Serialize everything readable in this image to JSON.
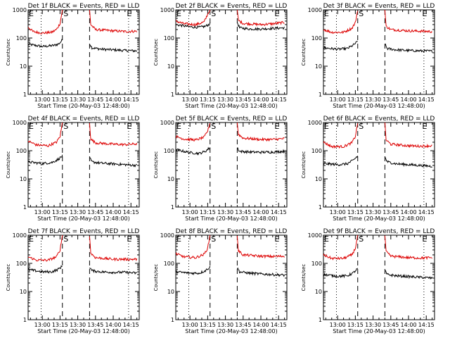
{
  "figure": {
    "time_ticks": [
      "13:00",
      "13:15",
      "13:30",
      "13:45",
      "14:00",
      "14:15"
    ],
    "y_ticks": [
      "1",
      "10",
      "100",
      "1000"
    ],
    "ylabel": "Counts/sec",
    "xlabel": "Start Time (20-May-03 12:48:00)",
    "markers": {
      "start_left": "E",
      "saa": "S",
      "end_right": "E"
    },
    "colors": {
      "events": "#000000",
      "lld": "#dd0000",
      "dotted": "#000000"
    }
  },
  "chart_data": [
    {
      "type": "line",
      "title": "Det 1f BLACK = Events, RED = LLD",
      "xlabel": "Start Time (20-May-03 12:48:00)",
      "ylabel": "Counts/sec",
      "yscale": "log",
      "ylim": [
        1,
        1000
      ],
      "xlim": [
        "12:48",
        "14:22"
      ],
      "vlines_dotted": [
        "12:59",
        "14:13"
      ],
      "vlines_dashed": [
        "13:17",
        "13:40"
      ],
      "series": [
        {
          "name": "Events",
          "color": "#000000",
          "segments": [
            {
              "x": [
                "12:48",
                "13:00",
                "13:05",
                "13:10",
                "13:14",
                "13:17"
              ],
              "y": [
                60,
                50,
                52,
                55,
                62,
                85
              ]
            },
            {
              "x": [
                "13:40",
                "13:42",
                "13:50",
                "14:00",
                "14:10",
                "14:20"
              ],
              "y": [
                65,
                45,
                40,
                38,
                36,
                35
              ]
            }
          ]
        },
        {
          "name": "LLD",
          "color": "#dd0000",
          "segments": [
            {
              "x": [
                "12:48",
                "12:52",
                "13:00",
                "13:08",
                "13:12",
                "13:15",
                "13:17"
              ],
              "y": [
                250,
                170,
                150,
                160,
                200,
                330,
                1000
              ]
            },
            {
              "x": [
                "13:40",
                "13:41",
                "13:45",
                "14:00",
                "14:10",
                "14:20"
              ],
              "y": [
                1000,
                300,
                200,
                180,
                170,
                175
              ]
            }
          ]
        }
      ]
    },
    {
      "type": "line",
      "title": "Det 2f BLACK = Events, RED = LLD",
      "xlabel": "Start Time (20-May-03 12:48:00)",
      "ylabel": "Counts/sec",
      "yscale": "log",
      "ylim": [
        1,
        1000
      ],
      "xlim": [
        "12:48",
        "14:22"
      ],
      "vlines_dotted": [
        "12:59",
        "14:13"
      ],
      "vlines_dashed": [
        "13:17",
        "13:40"
      ],
      "series": [
        {
          "name": "Events",
          "color": "#000000",
          "segments": [
            {
              "x": [
                "12:48",
                "13:00",
                "13:08",
                "13:13",
                "13:17"
              ],
              "y": [
                300,
                250,
                240,
                260,
                320
              ]
            },
            {
              "x": [
                "13:40",
                "13:42",
                "13:50",
                "14:00",
                "14:10",
                "14:20"
              ],
              "y": [
                360,
                230,
                210,
                210,
                220,
                230
              ]
            }
          ]
        },
        {
          "name": "LLD",
          "color": "#dd0000",
          "segments": [
            {
              "x": [
                "12:48",
                "12:55",
                "13:05",
                "13:12",
                "13:15",
                "13:17"
              ],
              "y": [
                400,
                320,
                300,
                370,
                700,
                1000
              ]
            },
            {
              "x": [
                "13:40",
                "13:41",
                "13:45",
                "14:00",
                "14:10",
                "14:20"
              ],
              "y": [
                1000,
                420,
                330,
                300,
                320,
                360
              ]
            }
          ]
        }
      ]
    },
    {
      "type": "line",
      "title": "Det 3f BLACK = Events, RED = LLD",
      "xlabel": "Start Time (20-May-03 12:48:00)",
      "ylabel": "Counts/sec",
      "yscale": "log",
      "ylim": [
        1,
        1000
      ],
      "xlim": [
        "12:48",
        "14:22"
      ],
      "vlines_dotted": [
        "12:59",
        "14:13"
      ],
      "vlines_dashed": [
        "13:17",
        "13:40"
      ],
      "series": [
        {
          "name": "Events",
          "color": "#000000",
          "segments": [
            {
              "x": [
                "12:48",
                "13:00",
                "13:08",
                "13:13",
                "13:17"
              ],
              "y": [
                45,
                40,
                42,
                55,
                75
              ]
            },
            {
              "x": [
                "13:40",
                "13:42",
                "13:50",
                "14:00",
                "14:10",
                "14:20"
              ],
              "y": [
                60,
                42,
                38,
                36,
                35,
                34
              ]
            }
          ]
        },
        {
          "name": "LLD",
          "color": "#dd0000",
          "segments": [
            {
              "x": [
                "12:48",
                "12:55",
                "13:05",
                "13:12",
                "13:15",
                "13:17"
              ],
              "y": [
                200,
                160,
                160,
                220,
                350,
                1000
              ]
            },
            {
              "x": [
                "13:40",
                "13:41",
                "13:45",
                "14:00",
                "14:10",
                "14:20"
              ],
              "y": [
                1000,
                260,
                200,
                180,
                175,
                170
              ]
            }
          ]
        }
      ]
    },
    {
      "type": "line",
      "title": "Det 4f BLACK = Events, RED = LLD",
      "xlabel": "Start Time (20-May-03 12:48:00)",
      "ylabel": "Counts/sec",
      "yscale": "log",
      "ylim": [
        1,
        1000
      ],
      "xlim": [
        "12:48",
        "14:22"
      ],
      "vlines_dotted": [
        "12:59",
        "14:13"
      ],
      "vlines_dashed": [
        "13:17",
        "13:40"
      ],
      "series": [
        {
          "name": "Events",
          "color": "#000000",
          "segments": [
            {
              "x": [
                "12:48",
                "13:00",
                "13:08",
                "13:13",
                "13:17"
              ],
              "y": [
                40,
                35,
                38,
                48,
                65
              ]
            },
            {
              "x": [
                "13:40",
                "13:42",
                "13:50",
                "14:00",
                "14:10",
                "14:20"
              ],
              "y": [
                55,
                40,
                36,
                34,
                32,
                30
              ]
            }
          ]
        },
        {
          "name": "LLD",
          "color": "#dd0000",
          "segments": [
            {
              "x": [
                "12:48",
                "12:55",
                "13:05",
                "13:12",
                "13:15",
                "13:17"
              ],
              "y": [
                220,
                160,
                150,
                200,
                320,
                1000
              ]
            },
            {
              "x": [
                "13:40",
                "13:41",
                "13:45",
                "14:00",
                "14:10",
                "14:20"
              ],
              "y": [
                1000,
                260,
                190,
                170,
                165,
                175
              ]
            }
          ]
        }
      ]
    },
    {
      "type": "line",
      "title": "Det 5f BLACK = Events, RED = LLD",
      "xlabel": "Start Time (20-May-03 12:48:00)",
      "ylabel": "Counts/sec",
      "yscale": "log",
      "ylim": [
        1,
        1000
      ],
      "xlim": [
        "12:48",
        "14:22"
      ],
      "vlines_dotted": [
        "12:59",
        "14:13"
      ],
      "vlines_dashed": [
        "13:17",
        "13:40"
      ],
      "series": [
        {
          "name": "Events",
          "color": "#000000",
          "segments": [
            {
              "x": [
                "12:48",
                "13:00",
                "13:08",
                "13:13",
                "13:17"
              ],
              "y": [
                110,
                85,
                80,
                95,
                130
              ]
            },
            {
              "x": [
                "13:40",
                "13:42",
                "13:50",
                "14:00",
                "14:10",
                "14:20"
              ],
              "y": [
                130,
                95,
                90,
                88,
                90,
                95
              ]
            }
          ]
        },
        {
          "name": "LLD",
          "color": "#dd0000",
          "segments": [
            {
              "x": [
                "12:48",
                "12:55",
                "13:05",
                "13:12",
                "13:15",
                "13:17"
              ],
              "y": [
                320,
                260,
                240,
                300,
                500,
                1000
              ]
            },
            {
              "x": [
                "13:40",
                "13:41",
                "13:45",
                "14:00",
                "14:10",
                "14:20"
              ],
              "y": [
                1000,
                380,
                280,
                250,
                250,
                270
              ]
            }
          ]
        }
      ]
    },
    {
      "type": "line",
      "title": "Det 6f BLACK = Events, RED = LLD",
      "xlabel": "Start Time (20-May-03 12:48:00)",
      "ylabel": "Counts/sec",
      "yscale": "log",
      "ylim": [
        1,
        1000
      ],
      "xlim": [
        "12:48",
        "14:22"
      ],
      "vlines_dotted": [
        "12:59",
        "14:13"
      ],
      "vlines_dashed": [
        "13:17",
        "13:40"
      ],
      "series": [
        {
          "name": "Events",
          "color": "#000000",
          "segments": [
            {
              "x": [
                "12:48",
                "13:00",
                "13:08",
                "13:13",
                "13:17"
              ],
              "y": [
                35,
                32,
                34,
                45,
                65
              ]
            },
            {
              "x": [
                "13:40",
                "13:42",
                "13:50",
                "14:00",
                "14:10",
                "14:20"
              ],
              "y": [
                60,
                40,
                34,
                32,
                30,
                28
              ]
            }
          ]
        },
        {
          "name": "LLD",
          "color": "#dd0000",
          "segments": [
            {
              "x": [
                "12:48",
                "12:55",
                "13:05",
                "13:12",
                "13:15",
                "13:17"
              ],
              "y": [
                200,
                140,
                140,
                190,
                320,
                1000
              ]
            },
            {
              "x": [
                "13:40",
                "13:41",
                "13:45",
                "14:00",
                "14:10",
                "14:20"
              ],
              "y": [
                1000,
                240,
                170,
                150,
                145,
                150
              ]
            }
          ]
        }
      ]
    },
    {
      "type": "line",
      "title": "Det 7f BLACK = Events, RED = LLD",
      "xlabel": "Start Time (20-May-03 12:48:00)",
      "ylabel": "Counts/sec",
      "yscale": "log",
      "ylim": [
        1,
        1000
      ],
      "xlim": [
        "12:48",
        "14:22"
      ],
      "vlines_dotted": [
        "12:59",
        "14:13"
      ],
      "vlines_dashed": [
        "13:17",
        "13:40"
      ],
      "series": [
        {
          "name": "Events",
          "color": "#000000",
          "segments": [
            {
              "x": [
                "12:48",
                "13:00",
                "13:08",
                "13:13",
                "13:17"
              ],
              "y": [
                60,
                50,
                50,
                60,
                80
              ]
            },
            {
              "x": [
                "13:40",
                "13:42",
                "13:50",
                "14:00",
                "14:10",
                "14:20"
              ],
              "y": [
                75,
                55,
                50,
                48,
                48,
                45
              ]
            }
          ]
        },
        {
          "name": "LLD",
          "color": "#dd0000",
          "segments": [
            {
              "x": [
                "12:48",
                "12:55",
                "13:05",
                "13:12",
                "13:15",
                "13:17"
              ],
              "y": [
                170,
                130,
                130,
                170,
                300,
                1000
              ]
            },
            {
              "x": [
                "13:40",
                "13:41",
                "13:45",
                "14:00",
                "14:10",
                "14:20"
              ],
              "y": [
                1000,
                230,
                160,
                140,
                140,
                140
              ]
            }
          ]
        }
      ]
    },
    {
      "type": "line",
      "title": "Det 8f BLACK = Events, RED = LLD",
      "xlabel": "Start Time (20-May-03 12:48:00)",
      "ylabel": "Counts/sec",
      "yscale": "log",
      "ylim": [
        1,
        1000
      ],
      "xlim": [
        "12:48",
        "14:22"
      ],
      "vlines_dotted": [
        "12:59",
        "14:13"
      ],
      "vlines_dashed": [
        "13:17",
        "13:40"
      ],
      "series": [
        {
          "name": "Events",
          "color": "#000000",
          "segments": [
            {
              "x": [
                "12:48",
                "13:00",
                "13:08",
                "13:13",
                "13:17"
              ],
              "y": [
                50,
                45,
                45,
                55,
                75
              ]
            },
            {
              "x": [
                "13:40",
                "13:42",
                "13:50",
                "14:00",
                "14:10",
                "14:20"
              ],
              "y": [
                70,
                50,
                45,
                42,
                40,
                38
              ]
            }
          ]
        },
        {
          "name": "LLD",
          "color": "#dd0000",
          "segments": [
            {
              "x": [
                "12:48",
                "12:55",
                "13:05",
                "13:12",
                "13:15",
                "13:17"
              ],
              "y": [
                220,
                170,
                160,
                210,
                350,
                1000
              ]
            },
            {
              "x": [
                "13:40",
                "13:41",
                "13:45",
                "14:00",
                "14:10",
                "14:20"
              ],
              "y": [
                1000,
                280,
                200,
                180,
                175,
                180
              ]
            }
          ]
        }
      ]
    },
    {
      "type": "line",
      "title": "Det 9f BLACK = Events, RED = LLD",
      "xlabel": "Start Time (20-May-03 12:48:00)",
      "ylabel": "Counts/sec",
      "yscale": "log",
      "ylim": [
        1,
        1000
      ],
      "xlim": [
        "12:48",
        "14:22"
      ],
      "vlines_dotted": [
        "12:59",
        "14:13"
      ],
      "vlines_dashed": [
        "13:17",
        "13:40"
      ],
      "series": [
        {
          "name": "Events",
          "color": "#000000",
          "segments": [
            {
              "x": [
                "12:48",
                "13:00",
                "13:08",
                "13:13",
                "13:17"
              ],
              "y": [
                40,
                35,
                36,
                45,
                65
              ]
            },
            {
              "x": [
                "13:40",
                "13:42",
                "13:50",
                "14:00",
                "14:10",
                "14:20"
              ],
              "y": [
                55,
                40,
                36,
                34,
                32,
                30
              ]
            }
          ]
        },
        {
          "name": "LLD",
          "color": "#dd0000",
          "segments": [
            {
              "x": [
                "12:48",
                "12:55",
                "13:05",
                "13:12",
                "13:15",
                "13:17"
              ],
              "y": [
                200,
                150,
                150,
                200,
                340,
                1000
              ]
            },
            {
              "x": [
                "13:40",
                "13:41",
                "13:45",
                "14:00",
                "14:10",
                "14:20"
              ],
              "y": [
                1000,
                260,
                180,
                160,
                155,
                160
              ]
            }
          ]
        }
      ]
    }
  ]
}
